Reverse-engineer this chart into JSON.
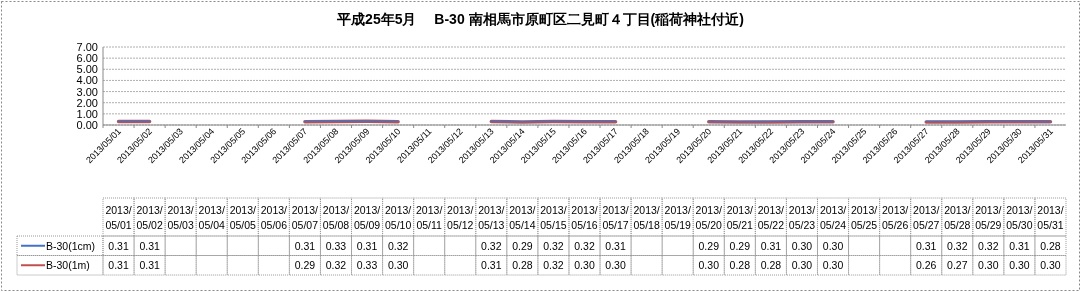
{
  "chart_data": {
    "type": "line",
    "title": "平成25年5月　 B-30 南相馬市原町区二見町４丁目(稲荷神社付近)",
    "categories": [
      "2013/05/01",
      "2013/05/02",
      "2013/05/03",
      "2013/05/04",
      "2013/05/05",
      "2013/05/06",
      "2013/05/07",
      "2013/05/08",
      "2013/05/09",
      "2013/05/10",
      "2013/05/11",
      "2013/05/12",
      "2013/05/13",
      "2013/05/14",
      "2013/05/15",
      "2013/05/16",
      "2013/05/17",
      "2013/05/18",
      "2013/05/19",
      "2013/05/20",
      "2013/05/21",
      "2013/05/22",
      "2013/05/23",
      "2013/05/24",
      "2013/05/25",
      "2013/05/26",
      "2013/05/27",
      "2013/05/28",
      "2013/05/29",
      "2013/05/30",
      "2013/05/31"
    ],
    "series": [
      {
        "name": "B-30(1cm)",
        "color": "#4472c4",
        "values": [
          0.31,
          0.31,
          null,
          null,
          null,
          null,
          0.31,
          0.33,
          0.31,
          0.32,
          null,
          null,
          0.32,
          0.29,
          0.32,
          0.32,
          0.31,
          null,
          null,
          0.29,
          0.29,
          0.31,
          0.3,
          0.3,
          null,
          null,
          0.31,
          0.32,
          0.32,
          0.31,
          0.28
        ],
        "value_labels": [
          "0.31",
          "0.31",
          null,
          null,
          null,
          null,
          "0.31",
          "0.33",
          "0.31",
          "0.32",
          null,
          null,
          "0.32",
          "0.29",
          "0.32",
          "0.32",
          "0.31",
          null,
          null,
          "0.29",
          "0.29",
          "0.31",
          "0.30",
          "0.30",
          null,
          null,
          "0.31",
          "0.32",
          "0.32",
          "0.31",
          "0.28"
        ]
      },
      {
        "name": "B-30(1m)",
        "color": "#c0504d",
        "values": [
          0.31,
          0.31,
          null,
          null,
          null,
          null,
          0.29,
          0.32,
          0.33,
          0.3,
          null,
          null,
          0.31,
          0.28,
          0.32,
          0.3,
          0.3,
          null,
          null,
          0.3,
          0.28,
          0.28,
          0.3,
          0.3,
          null,
          null,
          0.26,
          0.27,
          0.3,
          0.3,
          0.3
        ],
        "value_labels": [
          "0.31",
          "0.31",
          null,
          null,
          null,
          null,
          "0.29",
          "0.32",
          "0.33",
          "0.30",
          null,
          null,
          "0.31",
          "0.28",
          "0.32",
          "0.30",
          "0.30",
          null,
          null,
          "0.30",
          "0.28",
          "0.28",
          "0.30",
          "0.30",
          null,
          null,
          "0.26",
          "0.27",
          "0.30",
          "0.30",
          "0.30"
        ]
      }
    ],
    "ylim": [
      0,
      7
    ],
    "yticks": [
      {
        "value": 0,
        "label": "0.00"
      },
      {
        "value": 1,
        "label": "1.00"
      },
      {
        "value": 2,
        "label": "2.00"
      },
      {
        "value": 3,
        "label": "3.00"
      },
      {
        "value": 4,
        "label": "4.00"
      },
      {
        "value": 5,
        "label": "5.00"
      },
      {
        "value": 6,
        "label": "6.00"
      },
      {
        "value": 7,
        "label": "7.00"
      }
    ],
    "grid": "y",
    "marker": "none",
    "line_style": "solid",
    "legend": "bottom"
  }
}
